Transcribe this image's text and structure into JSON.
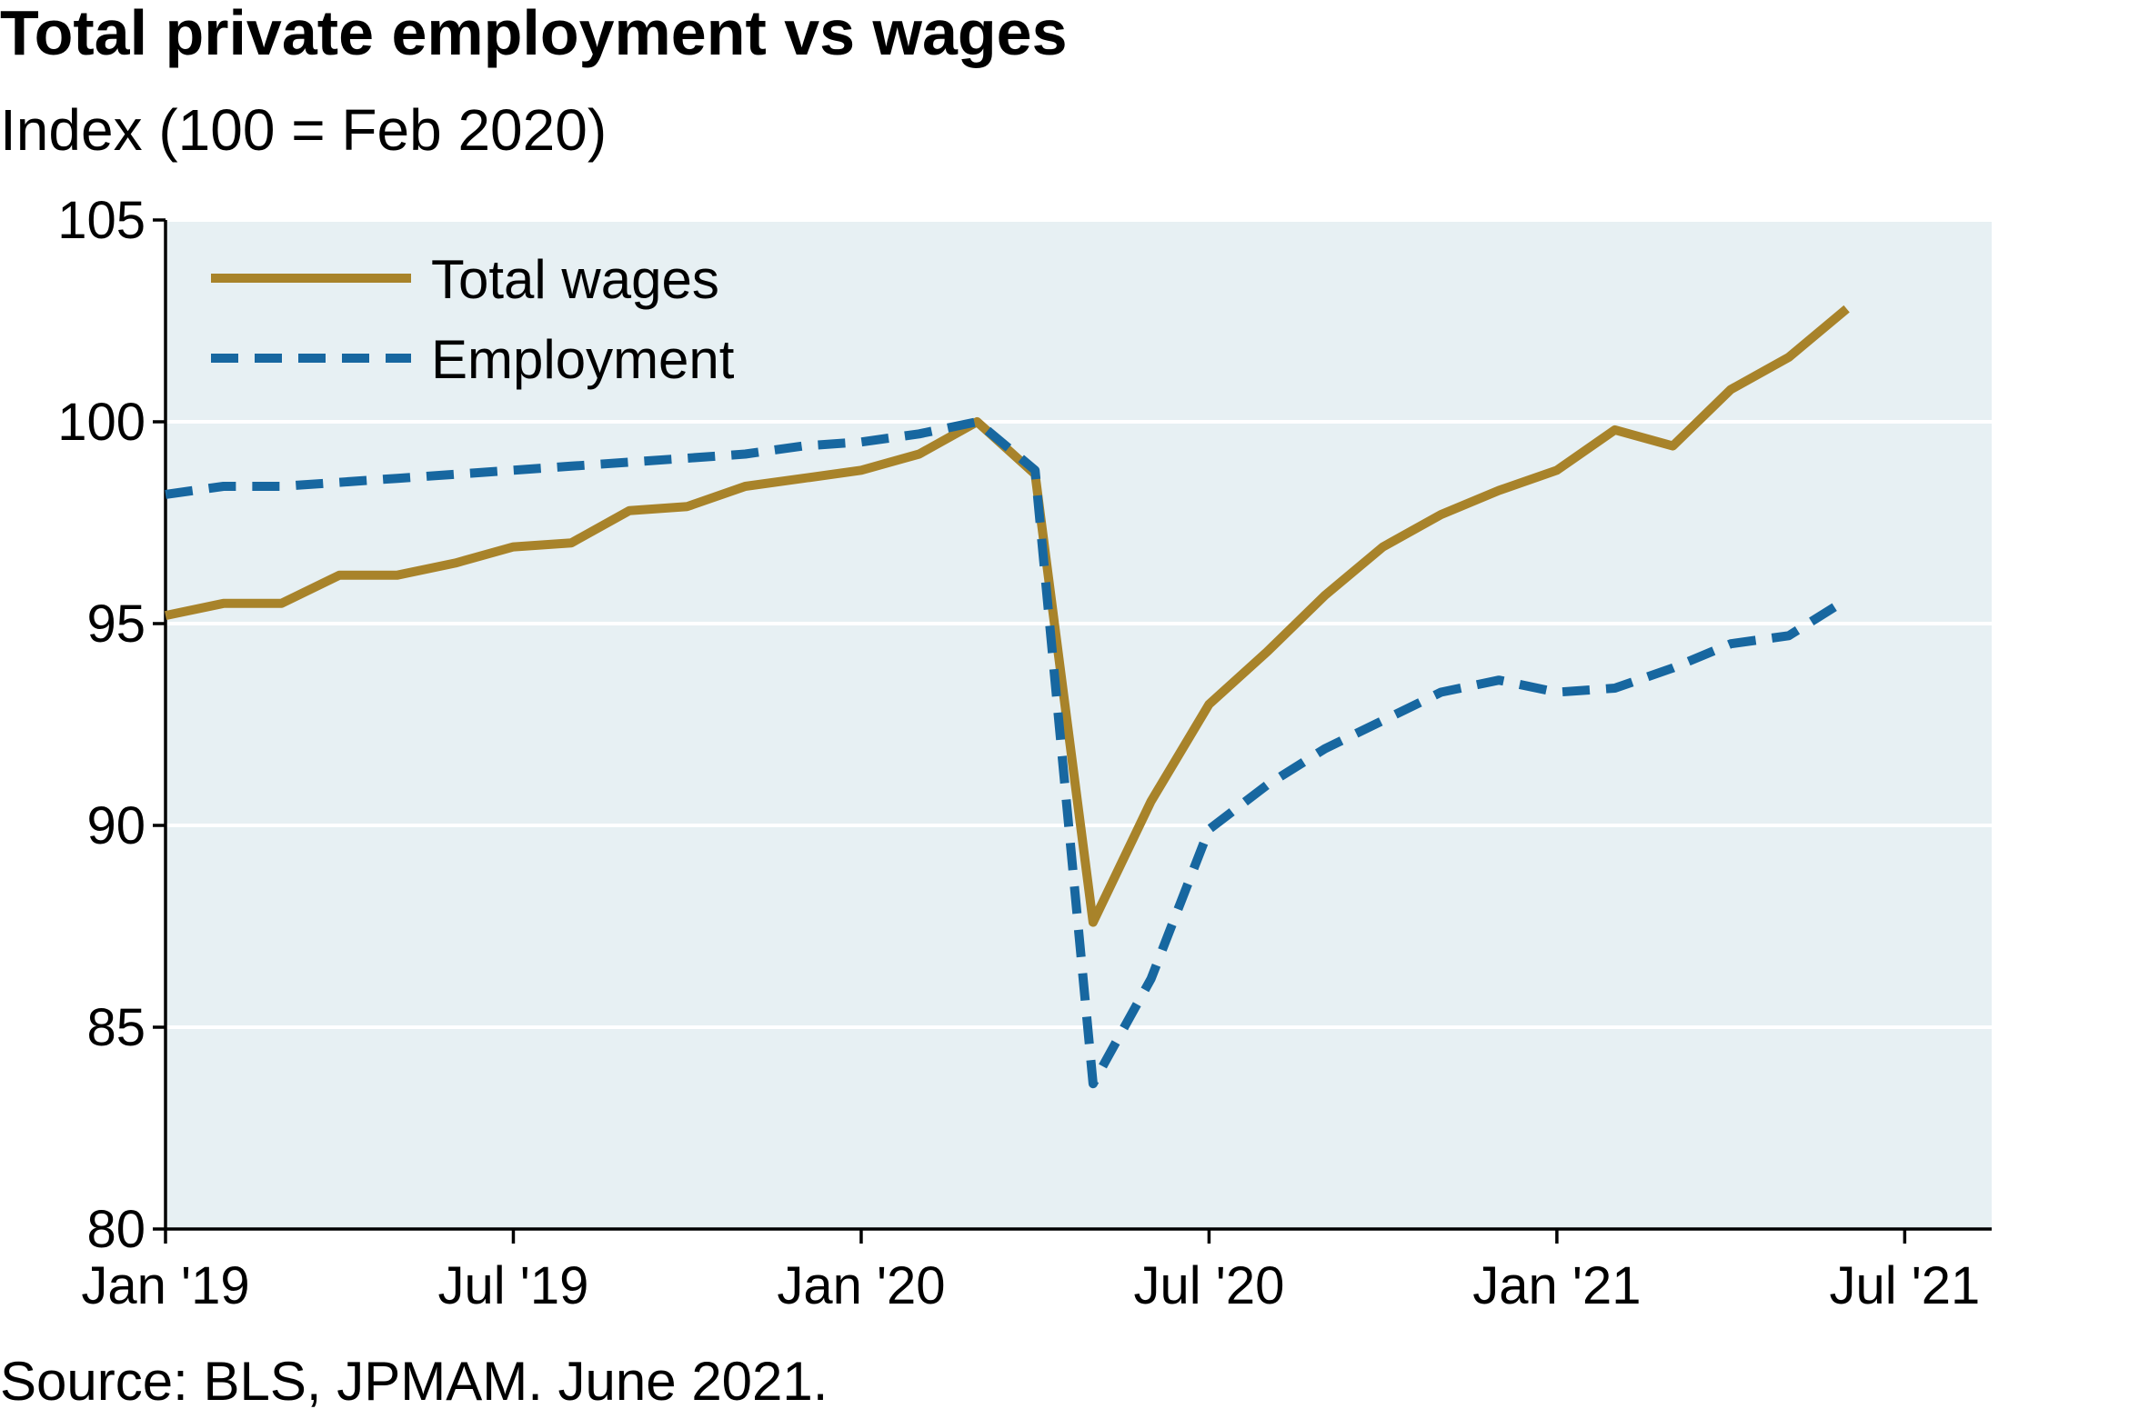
{
  "title": "Total private employment vs wages",
  "subtitle": "Index (100 = Feb 2020)",
  "source": "Source: BLS, JPMAM. June 2021.",
  "colors": {
    "wages": "#A8832A",
    "employment": "#1767A0",
    "plot_bg": "#E7F0F3",
    "grid": "#FFFFFF"
  },
  "chart_data": {
    "type": "line",
    "ylim": [
      80,
      105
    ],
    "yticks": [
      80,
      85,
      90,
      95,
      100,
      105
    ],
    "xlim": [
      0,
      31.5
    ],
    "xticks": [
      {
        "pos": 0,
        "label": "Jan '19"
      },
      {
        "pos": 6,
        "label": "Jul '19"
      },
      {
        "pos": 12,
        "label": "Jan '20"
      },
      {
        "pos": 18,
        "label": "Jul '20"
      },
      {
        "pos": 24,
        "label": "Jan '21"
      },
      {
        "pos": 30,
        "label": "Jul '21"
      }
    ],
    "x": [
      "Jan 2019",
      "Feb 2019",
      "Mar 2019",
      "Apr 2019",
      "May 2019",
      "Jun 2019",
      "Jul 2019",
      "Aug 2019",
      "Sep 2019",
      "Oct 2019",
      "Nov 2019",
      "Dec 2019",
      "Jan 2020",
      "Feb 2020",
      "Mar 2020",
      "Apr 2020",
      "May 2020",
      "Jun 2020",
      "Jul 2020",
      "Aug 2020",
      "Sep 2020",
      "Oct 2020",
      "Nov 2020",
      "Dec 2020",
      "Jan 2021",
      "Feb 2021",
      "Mar 2021",
      "Apr 2021",
      "May 2021",
      "Jun 2021"
    ],
    "series": [
      {
        "name": "Total wages",
        "style": "solid",
        "values": [
          95.2,
          95.5,
          95.5,
          96.2,
          96.2,
          96.5,
          96.9,
          97.0,
          97.8,
          97.9,
          98.4,
          98.6,
          98.8,
          99.2,
          100.0,
          98.7,
          87.6,
          90.6,
          93.0,
          94.3,
          95.7,
          96.9,
          97.7,
          98.3,
          98.8,
          99.8,
          99.4,
          100.8,
          101.6,
          102.8
        ]
      },
      {
        "name": "Employment",
        "style": "dashed",
        "values": [
          98.2,
          98.4,
          98.4,
          98.5,
          98.6,
          98.7,
          98.8,
          98.9,
          99.0,
          99.1,
          99.2,
          99.4,
          99.5,
          99.7,
          100.0,
          98.8,
          83.6,
          86.2,
          89.9,
          91.0,
          91.9,
          92.6,
          93.3,
          93.6,
          93.3,
          93.4,
          93.9,
          94.5,
          94.7,
          95.6
        ]
      }
    ],
    "legend": "top-left"
  }
}
